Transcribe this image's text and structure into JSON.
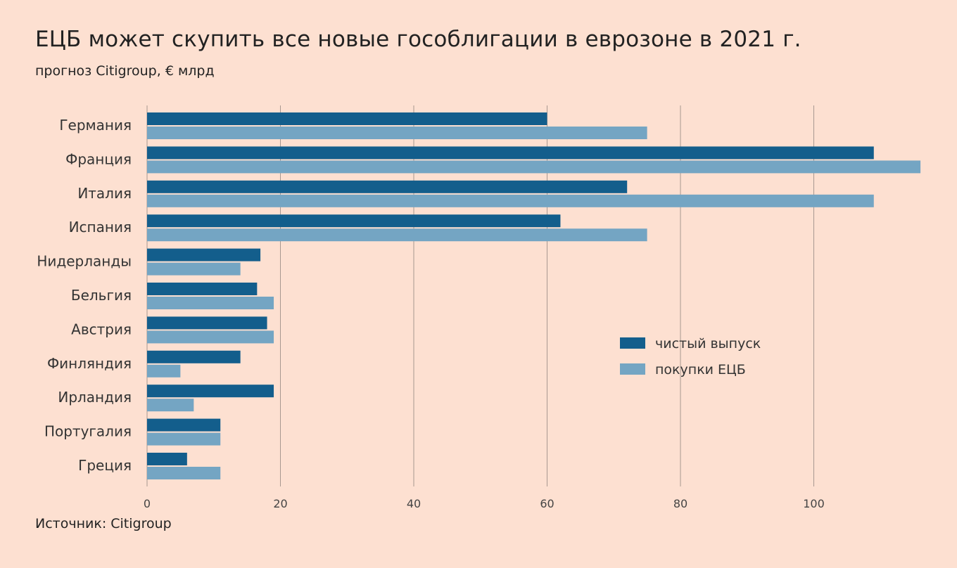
{
  "header": {
    "title": "ЕЦБ может скупить все новые гособлигации в еврозоне в 2021 г.",
    "subtitle": "прогноз Citigroup, € млрд"
  },
  "footer": {
    "source": "Источник: Citigroup"
  },
  "colors": {
    "background": "#fde0d1",
    "net_issuance": "#135e8c",
    "ecb_purchases": "#74a5c3",
    "gridline": "#a89890"
  },
  "chart_data": {
    "type": "bar",
    "orientation": "horizontal",
    "categories": [
      "Германия",
      "Франция",
      "Италия",
      "Испания",
      "Нидерланды",
      "Бельгия",
      "Австрия",
      "Финляндия",
      "Ирландия",
      "Португалия",
      "Греция"
    ],
    "series": [
      {
        "name": "чистый выпуск",
        "values": [
          60,
          109,
          72,
          62,
          17,
          16.5,
          18,
          14,
          19,
          11,
          6
        ]
      },
      {
        "name": "покупки ЕЦБ",
        "values": [
          75,
          116,
          109,
          75,
          14,
          19,
          19,
          5,
          7,
          11,
          11
        ]
      }
    ],
    "xlim": [
      0,
      120
    ],
    "xticks": [
      0,
      20,
      40,
      60,
      80,
      100
    ],
    "grid": true,
    "legend_position": "right-center"
  }
}
